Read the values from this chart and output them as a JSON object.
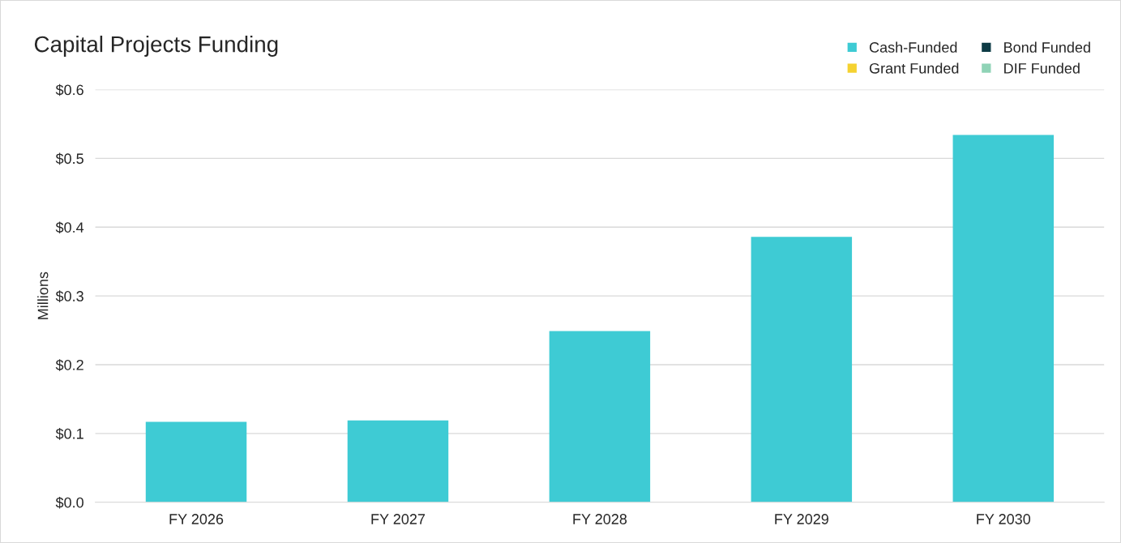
{
  "chart_data": {
    "type": "bar",
    "title": "Capital Projects Funding",
    "ylabel": "Millions",
    "categories": [
      "FY 2026",
      "FY 2027",
      "FY 2028",
      "FY 2029",
      "FY 2030"
    ],
    "stacked": true,
    "series": [
      {
        "name": "Cash-Funded",
        "color": "#3ecbd4",
        "values": [
          0.117,
          0.119,
          0.249,
          0.386,
          0.534
        ]
      },
      {
        "name": "Bond Funded",
        "color": "#0d3b45",
        "values": [
          0,
          0,
          0,
          0,
          0
        ]
      },
      {
        "name": "Grant Funded",
        "color": "#f5d230",
        "values": [
          0,
          0,
          0,
          0,
          0
        ]
      },
      {
        "name": "DIF Funded",
        "color": "#8fd3b6",
        "values": [
          0,
          0,
          0,
          0,
          0
        ]
      }
    ],
    "ylim": [
      0,
      0.6
    ],
    "yticks": [
      {
        "value": 0,
        "label": "$0.0"
      },
      {
        "value": 0.1,
        "label": "$0.1"
      },
      {
        "value": 0.2,
        "label": "$0.2"
      },
      {
        "value": 0.3,
        "label": "$0.3"
      },
      {
        "value": 0.4,
        "label": "$0.4"
      },
      {
        "value": 0.5,
        "label": "$0.5"
      },
      {
        "value": 0.6,
        "label": "$0.6"
      }
    ],
    "grid": "y",
    "legend": "top right"
  }
}
